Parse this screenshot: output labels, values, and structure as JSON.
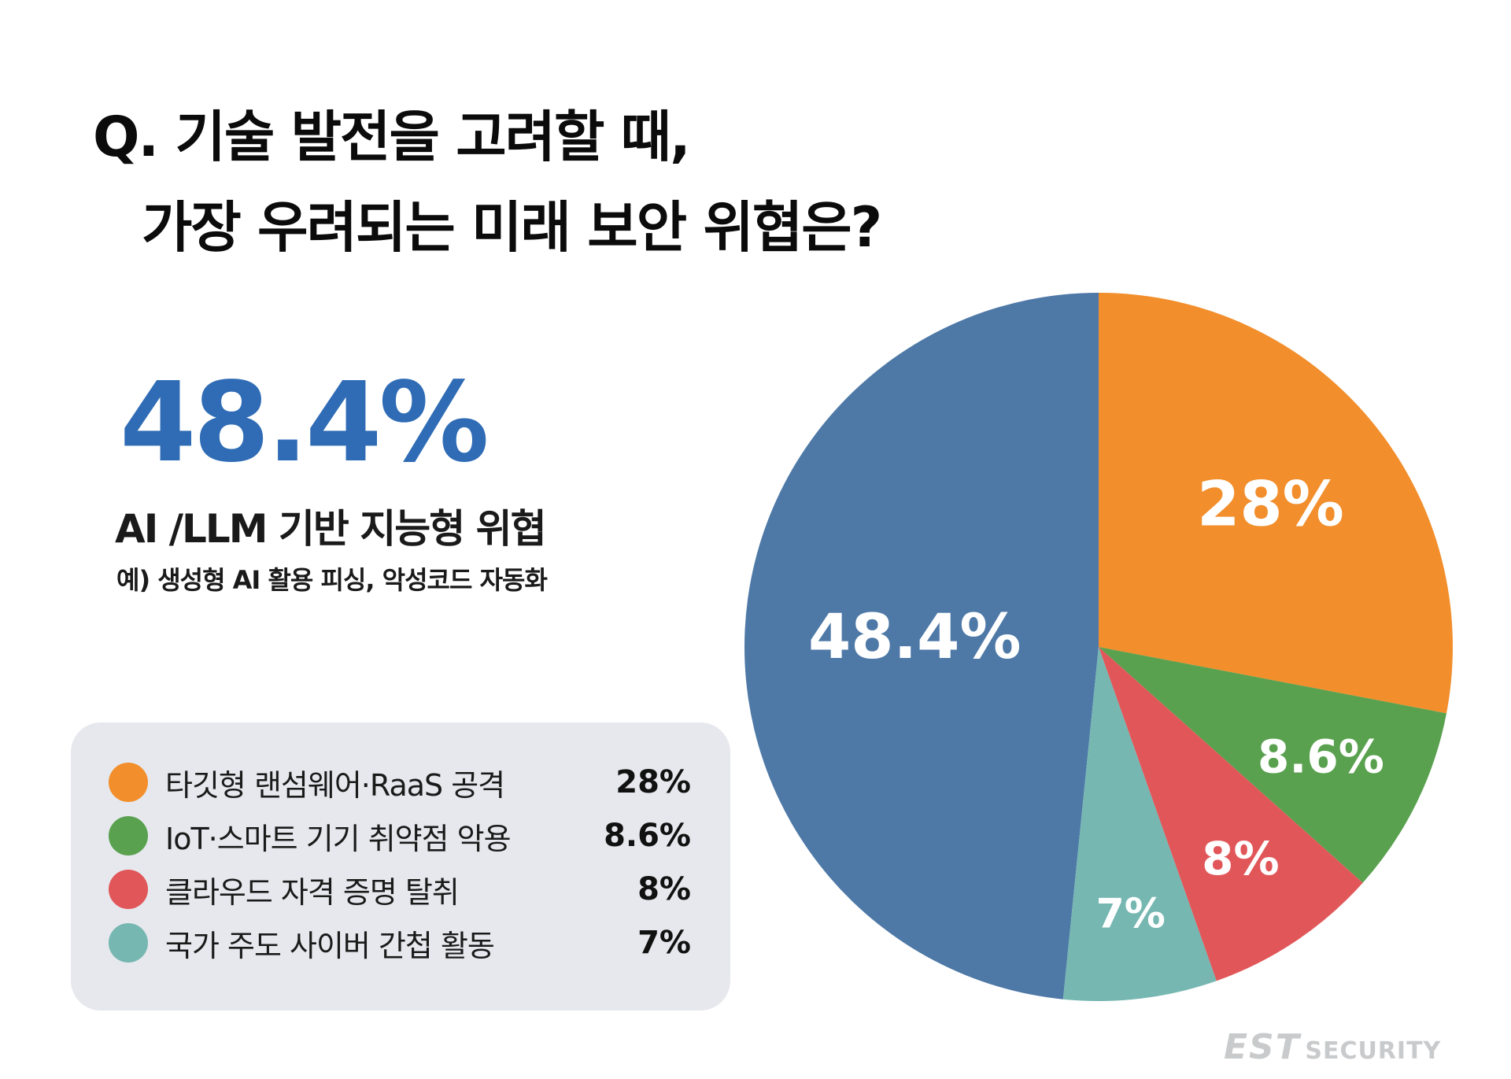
{
  "title_line1": "Q. 기술 발전을 고려할 때,",
  "title_line2": "가장 우려되는 미래 보안 위협은?",
  "highlight": {
    "value": "48.4%",
    "label": "AI /LLM 기반 지능형 위협",
    "example": "예) 생성형 AI 활용 피싱, 악성코드 자동화"
  },
  "logo": {
    "est": "EST",
    "security": "SECURITY"
  },
  "chart_data": {
    "type": "pie",
    "title": "",
    "slices": [
      {
        "label": "AI /LLM 기반 지능형 위협",
        "value": 48.4,
        "value_label": "48.4%",
        "color": "#4e79a7",
        "in_legend": false
      },
      {
        "label": "타깃형 랜섬웨어·RaaS 공격",
        "value": 28,
        "value_label": "28%",
        "color": "#f28e2b",
        "in_legend": true
      },
      {
        "label": "IoT·스마트 기기 취약점 악용",
        "value": 8.6,
        "value_label": "8.6%",
        "color": "#59a14f",
        "in_legend": true
      },
      {
        "label": "클라우드 자격 증명 탈취",
        "value": 8,
        "value_label": "8%",
        "color": "#e15759",
        "in_legend": true
      },
      {
        "label": "국가 주도 사이버 간첩 활동",
        "value": 7,
        "value_label": "7%",
        "color": "#76b7b2",
        "in_legend": true
      }
    ],
    "legend_placement": "bottom-left"
  }
}
